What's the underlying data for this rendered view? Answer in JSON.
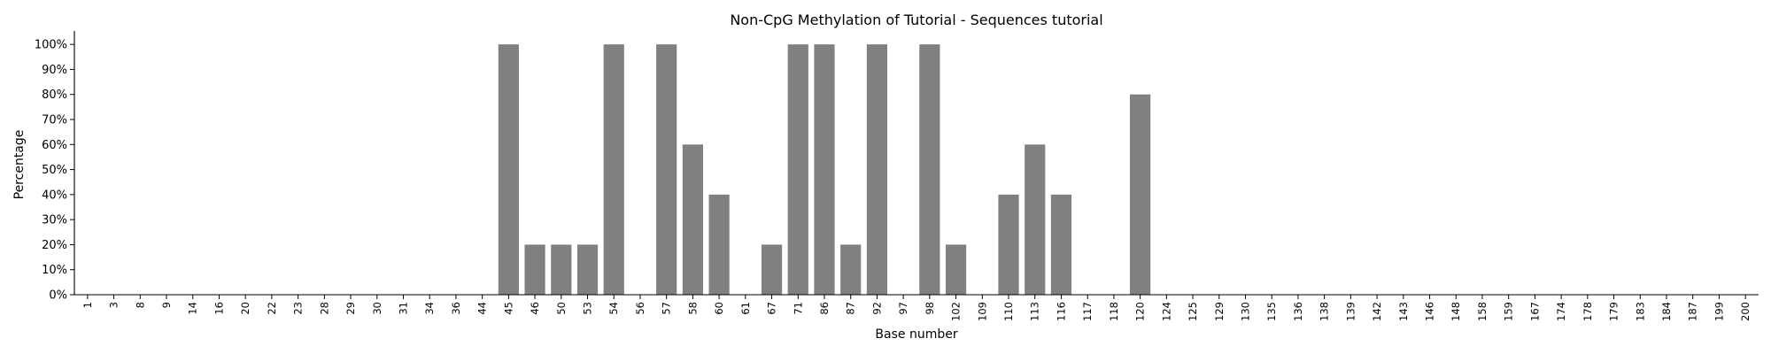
{
  "chart_data": {
    "type": "bar",
    "title": "Non-CpG Methylation of Tutorial - Sequences tutorial",
    "xlabel": "Base number",
    "ylabel": "Percentage",
    "ylim": [
      0,
      105
    ],
    "yticks": [
      0,
      10,
      20,
      30,
      40,
      50,
      60,
      70,
      80,
      90,
      100
    ],
    "ytick_suffix": "%",
    "bar_color": "#808080",
    "grid": false,
    "categories": [
      "1",
      "3",
      "8",
      "9",
      "14",
      "16",
      "20",
      "22",
      "23",
      "28",
      "29",
      "30",
      "31",
      "34",
      "36",
      "44",
      "45",
      "46",
      "50",
      "53",
      "54",
      "56",
      "57",
      "58",
      "60",
      "61",
      "67",
      "71",
      "86",
      "87",
      "92",
      "97",
      "98",
      "102",
      "109",
      "110",
      "113",
      "116",
      "117",
      "118",
      "120",
      "124",
      "125",
      "129",
      "130",
      "135",
      "136",
      "138",
      "139",
      "142",
      "143",
      "146",
      "148",
      "158",
      "159",
      "167",
      "174",
      "178",
      "179",
      "183",
      "184",
      "187",
      "199",
      "200"
    ],
    "values": [
      0,
      0,
      0,
      0,
      0,
      0,
      0,
      0,
      0,
      0,
      0,
      0,
      0,
      0,
      0,
      0,
      100,
      20,
      20,
      20,
      100,
      0,
      100,
      60,
      40,
      0,
      20,
      100,
      100,
      20,
      100,
      0,
      100,
      20,
      0,
      40,
      60,
      40,
      0,
      0,
      80,
      0,
      0,
      0,
      0,
      0,
      0,
      0,
      0,
      0,
      0,
      0,
      0,
      0,
      0,
      0,
      0,
      0,
      0,
      0,
      0,
      0,
      0,
      0
    ]
  }
}
